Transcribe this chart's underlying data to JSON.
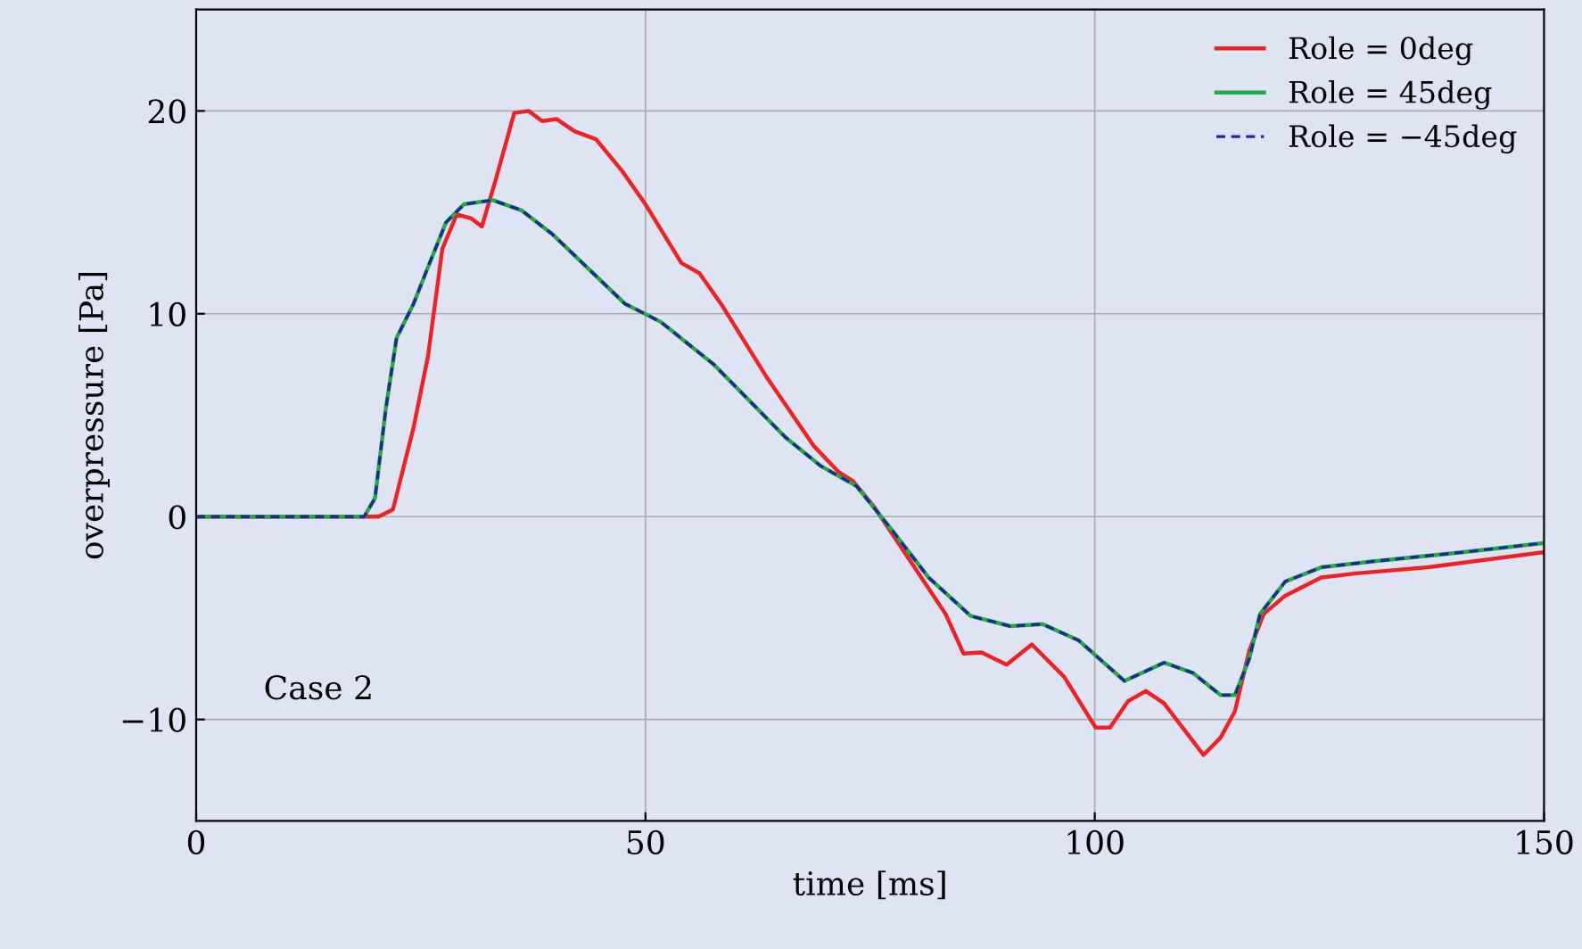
{
  "chart_data": {
    "type": "line",
    "xlabel": "time [ms]",
    "ylabel": "overpressure [Pa]",
    "xlim": [
      0,
      150
    ],
    "ylim": [
      -15,
      25
    ],
    "xticks": [
      0,
      50,
      100,
      150
    ],
    "yticks": [
      -10,
      0,
      10,
      20
    ],
    "grid": true,
    "legend": "top right",
    "annotations": [
      "Case 2"
    ],
    "series": [
      {
        "name": "Role = 0deg",
        "color": "#ee2222",
        "line_style": "solid",
        "x": [
          0,
          20.3,
          21.9,
          24.2,
          25.8,
          27.4,
          29,
          30.6,
          31.8,
          33.4,
          35.4,
          37,
          38.5,
          40.1,
          42.1,
          44.5,
          47.3,
          50,
          54,
          56,
          58.4,
          63.6,
          68.7,
          71.5,
          73.1,
          75.5,
          79.5,
          83.4,
          85.4,
          87.4,
          90.2,
          93,
          96.6,
          100.1,
          101.7,
          103.7,
          105.7,
          107.7,
          112.1,
          114,
          115.6,
          117.2,
          118.8,
          121.2,
          125.2,
          129.1,
          137.1,
          150
        ],
        "values": [
          0,
          0,
          0.35,
          4.4,
          7.9,
          13.2,
          14.9,
          14.7,
          14.3,
          16.7,
          19.9,
          20,
          19.5,
          19.6,
          19.0,
          18.6,
          17.1,
          15.4,
          12.5,
          12.0,
          10.5,
          6.8,
          3.5,
          2.2,
          1.75,
          0.45,
          -2.2,
          -4.8,
          -6.75,
          -6.7,
          -7.3,
          -6.3,
          -7.9,
          -10.4,
          -10.4,
          -9.1,
          -8.6,
          -9.2,
          -11.75,
          -10.9,
          -9.6,
          -6.6,
          -4.8,
          -3.9,
          -3.0,
          -2.8,
          -2.5,
          -1.75
        ]
      },
      {
        "name": "Role = 45deg",
        "color": "#22aa44",
        "line_style": "solid",
        "x": [
          0,
          18.7,
          19.9,
          21.1,
          22.3,
          24.2,
          25.8,
          27.8,
          29.8,
          33,
          36.2,
          39.7,
          47.7,
          51.7,
          57.6,
          65.6,
          69.5,
          73.5,
          77.5,
          81.5,
          86.2,
          90.6,
          94.2,
          98.2,
          103.3,
          105.3,
          107.7,
          110.9,
          114,
          115.6,
          117.2,
          118.4,
          121.2,
          125.2,
          131.1,
          141.1,
          150
        ],
        "values": [
          0,
          0,
          0.9,
          5.3,
          8.8,
          10.5,
          12.3,
          14.5,
          15.4,
          15.6,
          15.1,
          13.9,
          10.5,
          9.6,
          7.5,
          3.9,
          2.5,
          1.5,
          -0.7,
          -3.0,
          -4.9,
          -5.4,
          -5.3,
          -6.1,
          -8.1,
          -7.7,
          -7.2,
          -7.7,
          -8.8,
          -8.8,
          -7.0,
          -4.8,
          -3.2,
          -2.5,
          -2.2,
          -1.75,
          -1.3
        ]
      },
      {
        "name": "Role = −45deg",
        "color": "#1a2a9a",
        "line_style": "dashed",
        "x": [
          0,
          18.7,
          19.9,
          21.1,
          22.3,
          24.2,
          25.8,
          27.8,
          29.8,
          33,
          36.2,
          39.7,
          47.7,
          51.7,
          57.6,
          65.6,
          69.5,
          73.5,
          77.5,
          81.5,
          86.2,
          90.6,
          94.2,
          98.2,
          103.3,
          105.3,
          107.7,
          110.9,
          114,
          115.6,
          117.2,
          118.4,
          121.2,
          125.2,
          131.1,
          141.1,
          150
        ],
        "values": [
          0,
          0,
          0.9,
          5.3,
          8.8,
          10.5,
          12.3,
          14.5,
          15.4,
          15.6,
          15.1,
          13.9,
          10.5,
          9.6,
          7.5,
          3.9,
          2.5,
          1.5,
          -0.7,
          -3.0,
          -4.9,
          -5.4,
          -5.3,
          -6.1,
          -8.1,
          -7.7,
          -7.2,
          -7.7,
          -8.8,
          -8.8,
          -7.0,
          -4.8,
          -3.2,
          -2.5,
          -2.2,
          -1.75,
          -1.3
        ]
      }
    ]
  }
}
